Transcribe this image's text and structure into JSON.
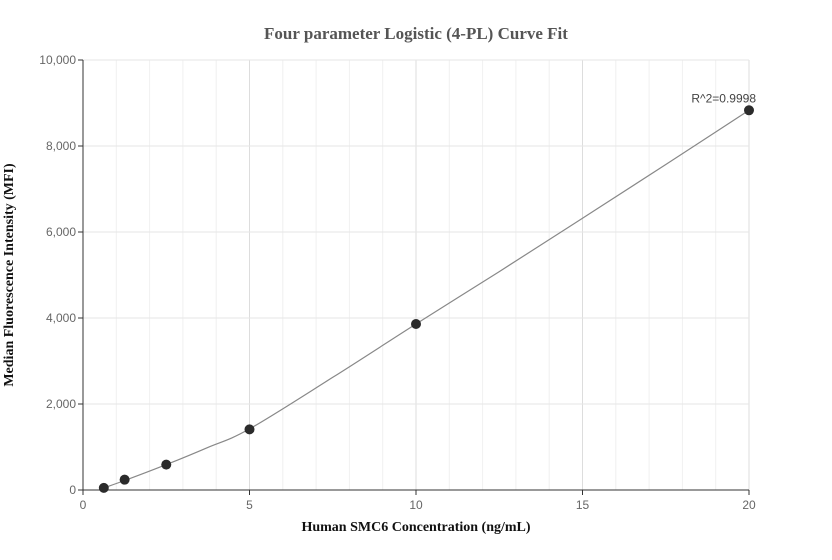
{
  "chart_data": {
    "type": "scatter",
    "title": "Four parameter Logistic (4-PL) Curve Fit",
    "xlabel": "Human SMC6 Concentration (ng/mL)",
    "ylabel": "Median Fluorescence Intensity (MFI)",
    "xlim": [
      0,
      20
    ],
    "ylim": [
      0,
      10000
    ],
    "x_ticks": [
      0,
      5,
      10,
      15,
      20
    ],
    "x_tick_labels": [
      "0",
      "5",
      "10",
      "15",
      "20"
    ],
    "y_ticks": [
      0,
      2000,
      4000,
      6000,
      8000,
      10000
    ],
    "y_tick_labels": [
      "0",
      "2,000",
      "4,000",
      "6,000",
      "8,000",
      "10,000"
    ],
    "grid": true,
    "series": [
      {
        "points": [
          {
            "x": 0.625,
            "y": 50
          },
          {
            "x": 1.25,
            "y": 240
          },
          {
            "x": 2.5,
            "y": 590
          },
          {
            "x": 5,
            "y": 1410
          },
          {
            "x": 10,
            "y": 3860
          },
          {
            "x": 20,
            "y": 8830
          }
        ]
      }
    ],
    "fit_curve": {
      "points": [
        {
          "x": 0.625,
          "y": 50
        },
        {
          "x": 1.25,
          "y": 220
        },
        {
          "x": 2.5,
          "y": 590
        },
        {
          "x": 3.75,
          "y": 990
        },
        {
          "x": 5,
          "y": 1420
        },
        {
          "x": 7.5,
          "y": 2620
        },
        {
          "x": 10,
          "y": 3860
        },
        {
          "x": 12.5,
          "y": 5080
        },
        {
          "x": 15,
          "y": 6320
        },
        {
          "x": 17.5,
          "y": 7570
        },
        {
          "x": 20,
          "y": 8830
        }
      ]
    },
    "annotation": "R^2=0.9998",
    "colors": {
      "marker": "#2b2b2b",
      "curve": "#888888",
      "grid": "#e6e6e6",
      "axis": "#333333"
    }
  }
}
